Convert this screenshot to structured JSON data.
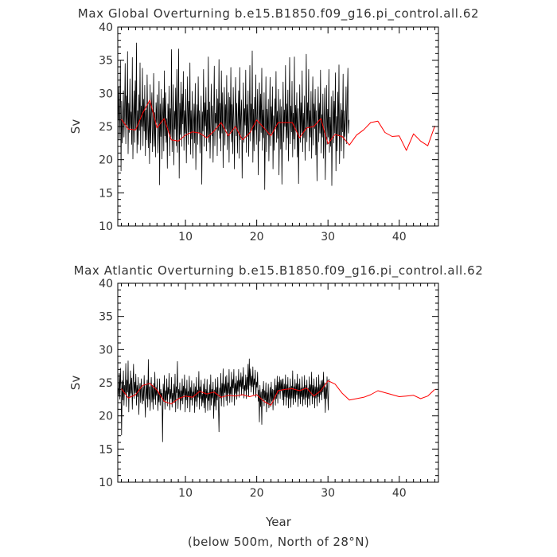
{
  "footnote": "(below 500m, North of 28°N)",
  "chart_data": [
    {
      "type": "line",
      "title": "Max Global Overturning b.e15.B1850.f09_g16.pi_control.all.62",
      "xlabel": "",
      "ylabel": "Sv",
      "xlim": [
        0.5,
        45.5
      ],
      "ylim": [
        10,
        40
      ],
      "xticks": [
        10,
        20,
        30,
        40
      ],
      "yticks": [
        10,
        15,
        20,
        25,
        30,
        35,
        40
      ],
      "grid": false,
      "colors": {
        "monthly": "#000000",
        "annual": "#ff0000"
      },
      "series": [
        {
          "key": "monthly",
          "x_start": 0.54,
          "x_step": 0.08333,
          "values": [
            26.0,
            31.0,
            23.1,
            27.4,
            35.0,
            18.3,
            28.8,
            22.5,
            25.6,
            30.4,
            23.4,
            27.6,
            34.5,
            22.4,
            29.6,
            25.2,
            36.3,
            20.9,
            28.5,
            24.1,
            32.2,
            24.7,
            27.2,
            22.3,
            35.4,
            20.1,
            26.8,
            30.4,
            22.6,
            31.9,
            24.5,
            37.6,
            21.0,
            27.4,
            22.3,
            29.8,
            24.4,
            34.6,
            21.5,
            28.1,
            25.0,
            33.8,
            22.1,
            29.1,
            24.3,
            31.2,
            20.6,
            27.5,
            23.0,
            32.8,
            25.2,
            21.8,
            28.6,
            19.4,
            31.3,
            22.5,
            26.9,
            30.1,
            21.2,
            24.8,
            33.0,
            22.0,
            27.1,
            20.4,
            28.6,
            25.6,
            29.8,
            21.0,
            24.2,
            31.8,
            16.2,
            28.4,
            23.5,
            30.6,
            20.1,
            26.4,
            29.3,
            21.3,
            33.4,
            23.6,
            30.1,
            22.6,
            26.2,
            18.7,
            28.4,
            24.3,
            31.1,
            20.6,
            27.7,
            23.5,
            36.6,
            21.2,
            25.8,
            31.3,
            19.2,
            27.3,
            24.6,
            30.8,
            22.1,
            33.6,
            21.1,
            26.5,
            36.7,
            17.2,
            28.5,
            23.8,
            31.7,
            22.0,
            29.9,
            25.4,
            33.3,
            21.4,
            27.4,
            24.0,
            30.6,
            19.5,
            26.2,
            32.5,
            22.3,
            28.8,
            24.2,
            34.6,
            20.8,
            27.4,
            23.1,
            30.3,
            20.2,
            24.5,
            28.4,
            22.5,
            31.5,
            18.5,
            25.4,
            28.3,
            22.3,
            32.5,
            24.1,
            27.4,
            21.0,
            25.7,
            29.6,
            16.3,
            27.2,
            24.3,
            33.6,
            22.0,
            28.6,
            25.1,
            30.9,
            21.3,
            27.5,
            23.4,
            35.5,
            22.6,
            28.7,
            20.2,
            25.3,
            31.4,
            23.6,
            28.1,
            19.6,
            25.8,
            34.1,
            22.1,
            27.0,
            25.5,
            30.6,
            20.6,
            29.2,
            24.4,
            35.1,
            23.2,
            28.5,
            21.3,
            33.4,
            24.0,
            30.1,
            18.8,
            26.6,
            30.9,
            22.2,
            28.3,
            24.6,
            32.7,
            21.5,
            25.9,
            30.1,
            19.6,
            29.4,
            24.2,
            33.9,
            22.7,
            28.3,
            20.9,
            30.9,
            25.6,
            18.6,
            27.3,
            32.4,
            23.6,
            28.5,
            21.0,
            25.6,
            30.4,
            20.2,
            33.9,
            23.0,
            26.5,
            29.0,
            17.2,
            24.9,
            31.6,
            22.6,
            27.7,
            25.2,
            33.5,
            21.1,
            28.3,
            23.5,
            30.4,
            20.5,
            26.8,
            34.2,
            22.8,
            28.4,
            24.4,
            36.4,
            19.6,
            27.6,
            21.3,
            29.4,
            24.5,
            32.8,
            22.3,
            26.4,
            30.6,
            17.7,
            25.8,
            31.6,
            22.8,
            29.9,
            24.1,
            33.8,
            21.4,
            27.5,
            23.3,
            30.1,
            15.5,
            24.4,
            32.5,
            21.2,
            27.6,
            23.7,
            29.1,
            19.8,
            25.9,
            32.4,
            22.1,
            28.0,
            24.0,
            31.0,
            18.6,
            26.6,
            21.4,
            29.2,
            24.6,
            33.3,
            22.6,
            27.3,
            23.2,
            30.6,
            17.7,
            25.6,
            29.1,
            21.6,
            28.0,
            16.3,
            24.4,
            31.7,
            22.7,
            27.5,
            25.0,
            34.2,
            21.5,
            28.4,
            23.3,
            30.5,
            19.8,
            26.6,
            35.4,
            22.4,
            28.1,
            24.2,
            31.8,
            20.4,
            27.0,
            23.1,
            35.5,
            21.6,
            28.2,
            24.4,
            30.1,
            20.4,
            27.7,
            16.4,
            25.2,
            31.3,
            22.6,
            28.6,
            24.0,
            33.4,
            21.2,
            27.0,
            23.3,
            29.6,
            19.9,
            26.4,
            35.9,
            22.7,
            28.6,
            24.9,
            33.6,
            21.3,
            27.4,
            23.4,
            30.3,
            20.2,
            26.5,
            32.5,
            22.2,
            28.4,
            24.7,
            30.6,
            20.7,
            27.4,
            16.8,
            25.2,
            31.0,
            22.7,
            28.5,
            24.0,
            33.5,
            21.0,
            26.8,
            23.4,
            29.9,
            20.2,
            25.6,
            30.8,
            17.0,
            24.6,
            31.2,
            22.3,
            27.6,
            23.4,
            33.6,
            21.1,
            26.4,
            22.0,
            29.5,
            16.1,
            25.3,
            30.4,
            22.5,
            28.8,
            24.0,
            33.1,
            18.3,
            26.5,
            21.3,
            30.2,
            23.6,
            34.3,
            19.4,
            25.4,
            28.5,
            21.3,
            27.5,
            24.2,
            32.9,
            20.2,
            27.4,
            23.5,
            26.0,
            31.0,
            22.4,
            28.6,
            33.8,
            24.0,
            26.0
          ]
        },
        {
          "key": "annual",
          "x_start": 1.0,
          "x_step": 1.0,
          "values": [
            26.1,
            24.6,
            24.5,
            27.0,
            29.0,
            24.8,
            26.2,
            23.0,
            22.8,
            23.7,
            24.2,
            24.0,
            23.3,
            24.3,
            25.6,
            23.6,
            25.0,
            23.0,
            24.0,
            26.0,
            24.8,
            23.6,
            25.6,
            25.6,
            25.6,
            23.3,
            24.8,
            25.0,
            26.2,
            22.4,
            23.8,
            23.5,
            22.2,
            23.7,
            24.5,
            25.6,
            25.8,
            24.1,
            23.5,
            23.6,
            21.4,
            23.9,
            22.8,
            22.1,
            25.1
          ]
        }
      ]
    },
    {
      "type": "line",
      "title": "Max Atlantic Overturning b.e15.B1850.f09_g16.pi_control.all.62",
      "xlabel": "Year",
      "ylabel": "Sv",
      "xlim": [
        0.5,
        45.5
      ],
      "ylim": [
        10,
        40
      ],
      "xticks": [
        10,
        20,
        30,
        40
      ],
      "yticks": [
        10,
        15,
        20,
        25,
        30,
        35,
        40
      ],
      "grid": false,
      "colors": {
        "monthly": "#000000",
        "annual": "#ff0000"
      },
      "series": [
        {
          "key": "monthly",
          "x_start": 0.54,
          "x_step": 0.08333,
          "values": [
            24.2,
            23.1,
            26.4,
            22.5,
            27.2,
            24.0,
            17.1,
            25.3,
            22.4,
            26.8,
            21.6,
            24.6,
            23.3,
            27.9,
            21.4,
            25.4,
            23.6,
            28.3,
            20.6,
            24.8,
            22.9,
            26.8,
            23.4,
            25.7,
            21.0,
            24.6,
            27.8,
            22.6,
            25.1,
            23.5,
            26.3,
            21.6,
            24.6,
            22.9,
            25.8,
            20.2,
            23.6,
            24.9,
            22.0,
            25.6,
            23.1,
            21.8,
            24.4,
            22.3,
            26.1,
            23.0,
            19.8,
            24.7,
            22.6,
            25.4,
            21.3,
            28.5,
            22.5,
            24.4,
            20.8,
            23.8,
            25.8,
            22.1,
            24.6,
            21.0,
            24.9,
            22.5,
            26.6,
            21.7,
            24.3,
            23.1,
            25.6,
            20.8,
            23.5,
            22.1,
            25.6,
            21.6,
            24.0,
            22.9,
            23.4,
            16.1,
            24.8,
            22.2,
            26.1,
            21.0,
            23.8,
            22.4,
            25.6,
            21.5,
            24.3,
            23.3,
            26.4,
            20.9,
            24.0,
            22.6,
            25.8,
            21.3,
            23.4,
            22.1,
            24.8,
            22.0,
            26.3,
            20.6,
            24.4,
            23.5,
            28.2,
            21.1,
            24.0,
            22.6,
            25.0,
            20.9,
            23.8,
            22.3,
            25.6,
            21.8,
            24.5,
            23.1,
            26.2,
            20.6,
            24.1,
            22.4,
            25.4,
            21.2,
            23.7,
            22.9,
            26.0,
            20.6,
            24.3,
            22.4,
            25.3,
            21.6,
            23.6,
            22.8,
            24.9,
            20.5,
            24.4,
            22.2,
            25.8,
            21.4,
            23.9,
            22.8,
            26.7,
            21.0,
            24.4,
            22.6,
            25.4,
            21.5,
            23.3,
            22.0,
            24.8,
            21.2,
            25.6,
            20.5,
            24.0,
            22.7,
            25.5,
            20.8,
            23.5,
            22.3,
            24.7,
            20.9,
            26.2,
            21.6,
            24.0,
            22.7,
            25.1,
            19.6,
            23.9,
            21.5,
            25.6,
            20.9,
            24.3,
            22.4,
            25.8,
            21.4,
            17.6,
            24.2,
            22.7,
            26.4,
            21.5,
            24.9,
            23.0,
            27.1,
            21.4,
            24.8,
            23.5,
            25.9,
            22.3,
            26.1,
            21.6,
            25.0,
            23.4,
            27.0,
            22.0,
            24.4,
            23.3,
            26.6,
            22.1,
            25.5,
            24.2,
            27.0,
            21.6,
            24.9,
            23.4,
            26.0,
            22.5,
            25.3,
            23.7,
            27.0,
            22.8,
            25.4,
            24.4,
            26.5,
            23.1,
            25.9,
            24.1,
            27.3,
            22.7,
            24.6,
            23.8,
            26.2,
            22.6,
            25.8,
            24.0,
            27.8,
            23.0,
            28.6,
            24.6,
            27.1,
            23.6,
            26.0,
            24.4,
            27.4,
            23.2,
            25.6,
            24.7,
            26.9,
            22.8,
            25.1,
            24.3,
            26.6,
            22.2,
            23.9,
            19.1,
            24.6,
            21.4,
            23.6,
            18.7,
            24.0,
            22.6,
            25.2,
            21.5,
            23.8,
            22.4,
            25.0,
            20.6,
            23.5,
            21.9,
            24.8,
            21.2,
            22.6,
            24.3,
            21.4,
            25.1,
            22.2,
            24.0,
            20.9,
            23.9,
            22.5,
            25.6,
            21.6,
            24.6,
            22.6,
            26.0,
            21.9,
            25.1,
            23.3,
            25.9,
            22.6,
            25.4,
            23.8,
            25.5,
            22.4,
            25.6,
            21.6,
            24.8,
            22.9,
            26.2,
            21.6,
            24.7,
            22.8,
            25.8,
            21.2,
            24.3,
            22.6,
            25.6,
            21.3,
            24.5,
            22.7,
            26.8,
            21.7,
            24.4,
            22.6,
            25.5,
            22.1,
            24.9,
            23.2,
            26.3,
            21.4,
            24.8,
            22.6,
            25.6,
            21.8,
            24.2,
            22.9,
            25.9,
            21.5,
            24.3,
            22.5,
            26.1,
            21.7,
            24.6,
            22.8,
            25.4,
            21.3,
            24.2,
            22.6,
            25.9,
            21.6,
            24.7,
            23.0,
            26.6,
            21.8,
            24.6,
            22.8,
            25.6,
            21.2,
            24.4,
            22.7,
            25.8,
            21.5,
            24.3,
            22.9,
            26.2,
            22.0,
            24.7,
            23.2,
            25.3,
            22.4,
            25.4,
            23.6,
            26.6,
            22.6,
            25.0,
            20.5,
            24.3,
            22.6,
            25.9,
            23.4,
            20.9,
            25.6
          ]
        },
        {
          "key": "annual",
          "x_start": 1.0,
          "x_step": 1.0,
          "values": [
            24.1,
            22.7,
            23.2,
            24.6,
            24.9,
            23.9,
            22.2,
            21.8,
            22.6,
            23.0,
            22.8,
            23.7,
            23.3,
            23.6,
            22.8,
            23.1,
            23.0,
            23.2,
            22.9,
            23.2,
            22.2,
            21.6,
            23.8,
            24.0,
            24.1,
            23.8,
            24.2,
            23.0,
            23.8,
            25.3,
            24.8,
            23.4,
            22.4,
            22.6,
            22.8,
            23.2,
            23.8,
            23.5,
            23.2,
            22.9,
            23.0,
            23.1,
            22.6,
            23.0,
            24.0
          ]
        }
      ]
    }
  ]
}
